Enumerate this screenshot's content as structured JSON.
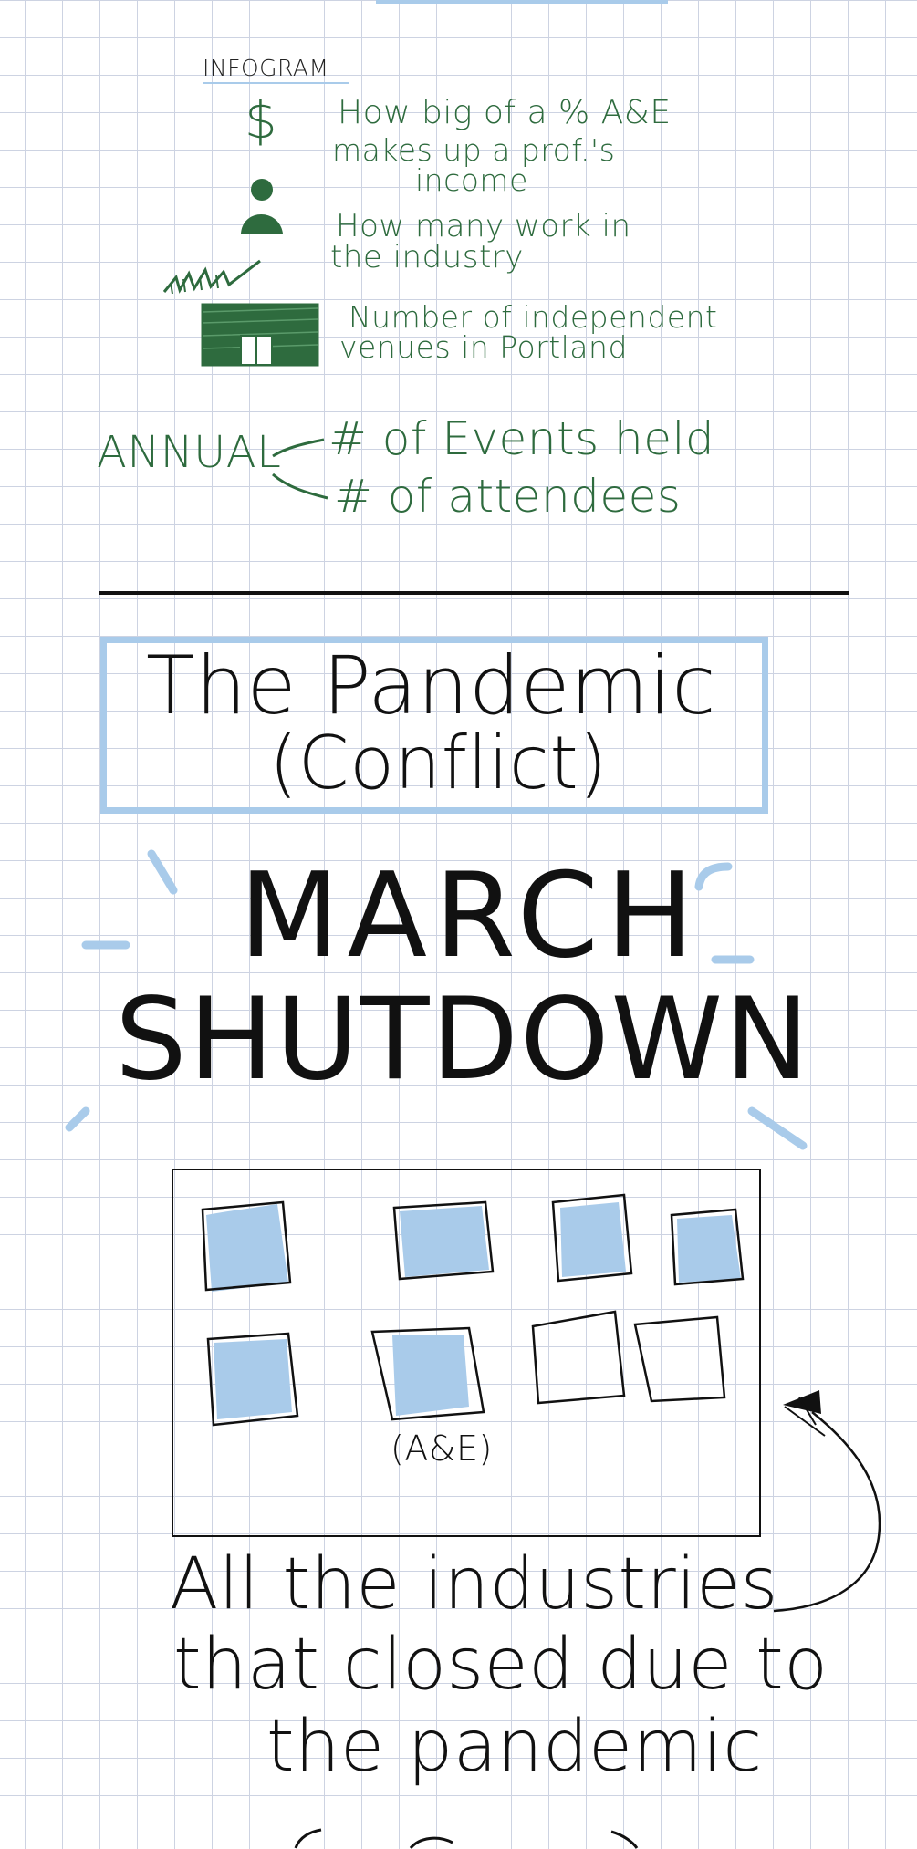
{
  "infogram": {
    "heading": "INFOGRAM",
    "items": [
      {
        "icon": "dollar-sign-icon",
        "glyph": "$",
        "text_line1": "How big of a % A&E",
        "text_line2": "makes up a prof.'s",
        "text_line3": "income"
      },
      {
        "icon": "person-icon",
        "text_line1": "How many work in",
        "text_line2": "the industry"
      },
      {
        "icon": "venue-building-icon",
        "text_line1": "Number of independent",
        "text_line2": "venues in Portland"
      }
    ],
    "annual_label": "ANNUAL",
    "annual_items": [
      "# of Events held",
      "# of attendees"
    ]
  },
  "pandemic_box": {
    "line1": "The Pandemic",
    "line2": "(Conflict)"
  },
  "shutdown": {
    "line1": "MARCH",
    "line2": "SHUTDOWN"
  },
  "industries": {
    "filled_count": 6,
    "total_count": 8,
    "highlight_label": "(A&E)",
    "caption_line1": "All the industries",
    "caption_line2": "that closed due to",
    "caption_line3": "the pandemic"
  },
  "colors": {
    "ink_green": "#2e6b3e",
    "ink_black": "#111111",
    "highlight_blue": "#a9cbea",
    "grid": "#cdd3e2"
  }
}
